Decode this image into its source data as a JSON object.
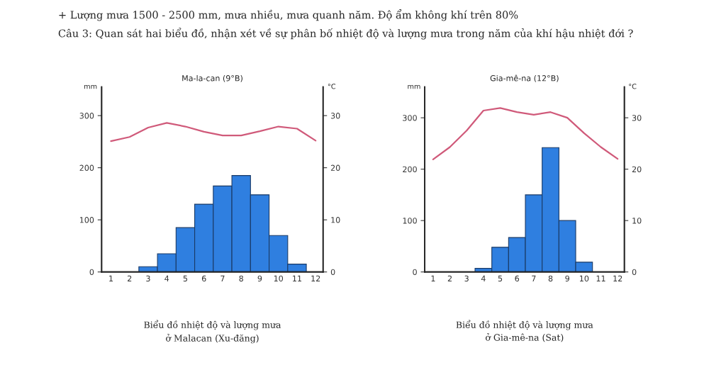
{
  "chart_data": [
    {
      "type": "bar",
      "title": "Ma-la-can (9°B)",
      "ylabel": "mm",
      "y2label": "°C",
      "categories": [
        "1",
        "2",
        "3",
        "4",
        "5",
        "6",
        "7",
        "8",
        "9",
        "10",
        "11",
        "12"
      ],
      "series": [
        {
          "color": "#2f7fe0",
          "values": [
            0,
            0,
            10,
            35,
            85,
            130,
            165,
            185,
            148,
            70,
            15,
            0
          ]
        },
        {
          "type": "line",
          "axis": "y2",
          "color": "#d05a7a",
          "values": [
            25.1,
            25.9,
            27.7,
            28.6,
            27.9,
            26.9,
            26.2,
            26.2,
            27.0,
            27.9,
            27.5,
            25.2
          ]
        }
      ],
      "ylim": [
        0,
        355
      ],
      "yticks": [
        0,
        100,
        200,
        300
      ],
      "y2lim": [
        0,
        35.5
      ],
      "y2ticks": [
        0,
        10,
        20,
        30
      ],
      "grid": false,
      "annotations": [
        "+ Lượng mưa 1500 - 2500 mm, mưa nhiều, mưa quanh năm. Độ ẩm không khí trên 80%",
        "Câu 3: Quan sát hai biểu đồ, nhận xét về sự phân bố nhiệt độ và lượng mưa trong năm của khí hậu nhiệt đới ?",
        "Biểu đồ nhiệt độ và lượng mưa\nở Malacan (Xu-đăng)"
      ]
    },
    {
      "type": "bar",
      "title": "Gia-mê-na (12°B)",
      "ylabel": "mm",
      "y2label": "°C",
      "categories": [
        "1",
        "2",
        "3",
        "4",
        "5",
        "6",
        "7",
        "8",
        "9",
        "10",
        "11",
        "12"
      ],
      "series": [
        {
          "color": "#2f7fe0",
          "values": [
            0,
            0,
            0,
            7,
            48,
            67,
            150,
            242,
            100,
            19,
            0,
            0
          ]
        },
        {
          "type": "line",
          "axis": "y2",
          "color": "#d05a7a",
          "values": [
            21.9,
            24.3,
            27.5,
            31.4,
            31.9,
            31.1,
            30.6,
            31.1,
            30.0,
            27.0,
            24.3,
            22.0
          ]
        }
      ],
      "ylim": [
        0,
        360
      ],
      "yticks": [
        0,
        100,
        200,
        300
      ],
      "y2lim": [
        0,
        36
      ],
      "y2ticks": [
        0,
        10,
        20,
        30
      ],
      "grid": false,
      "annotations": [
        "Biểu đồ nhiệt độ và lượng mưa\nở Gia-mê-na (Sat)"
      ]
    }
  ]
}
